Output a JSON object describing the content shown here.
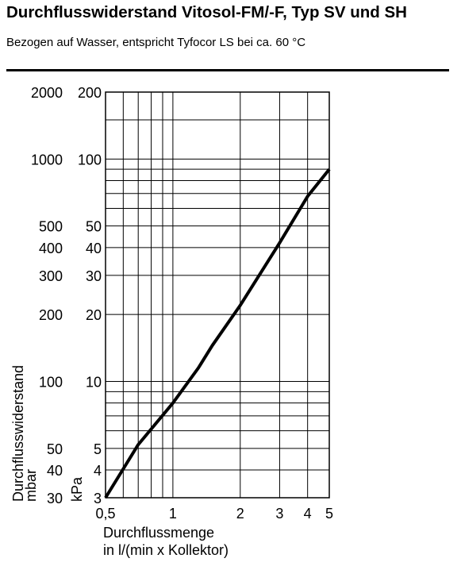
{
  "title": "Durchflusswiderstand Vitosol-FM/-F, Typ SV und SH",
  "subtitle": "Bezogen auf Wasser, entspricht Tyfocor LS bei ca. 60 °C",
  "chart_data": {
    "type": "line",
    "xscale": "log",
    "yscale": "log",
    "xlim": [
      0.5,
      5
    ],
    "ylim": [
      3,
      200
    ],
    "grid": true,
    "xlabel": "Durchflussmenge",
    "xlabel_line2": "in l/(min x Kollektor)",
    "ylabel_mbar": "Durchflusswiderstand",
    "ylabel_mbar_unit": "mbar",
    "ylabel_kpa": "kPa",
    "xticks": [
      "0,5",
      "1",
      "2",
      "3",
      "4",
      "5"
    ],
    "xtick_values": [
      0.5,
      1,
      2,
      3,
      4,
      5
    ],
    "yticks_kpa": [
      "3",
      "4",
      "5",
      "10",
      "20",
      "30",
      "40",
      "50",
      "100",
      "200"
    ],
    "yticks_mbar": [
      "30",
      "40",
      "50",
      "100",
      "200",
      "300",
      "400",
      "500",
      "1000",
      "2000"
    ],
    "ytick_values": [
      3,
      4,
      5,
      10,
      20,
      30,
      40,
      50,
      100,
      200
    ],
    "series": [
      {
        "x": [
          0.5,
          0.7,
          1.0,
          1.3,
          1.5,
          2.0,
          3.0,
          4.0,
          5.0
        ],
        "y": [
          3.0,
          5.2,
          8.0,
          11.5,
          14.5,
          22.0,
          42.0,
          68.0,
          90.0
        ]
      }
    ]
  }
}
